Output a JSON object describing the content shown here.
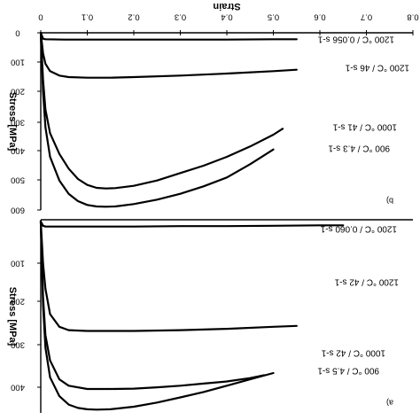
{
  "chart_data": [
    {
      "type": "line",
      "panel_label": "b)",
      "title": "",
      "xlabel": "Strain",
      "ylabel": "Stress [MPa]",
      "xlim": [
        0,
        0.8
      ],
      "ylim": [
        0,
        600
      ],
      "x_ticks": [
        "0",
        "0.1",
        "0.2",
        "0.3",
        "0.4",
        "0.5",
        "0.6",
        "0.7",
        "0.8"
      ],
      "y_ticks": [
        "0",
        "100",
        "200",
        "300",
        "400",
        "500",
        "600"
      ],
      "series": [
        {
          "name": "1200 °C / 0.056 s-1",
          "x": [
            0,
            0.005,
            0.01,
            0.05,
            0.1,
            0.2,
            0.3,
            0.4,
            0.5,
            0.55
          ],
          "y": [
            0,
            20,
            22,
            23,
            23,
            23,
            23,
            23,
            22,
            22
          ]
        },
        {
          "name": "1200 °C / 46 s-1",
          "x": [
            0,
            0.005,
            0.01,
            0.02,
            0.04,
            0.06,
            0.1,
            0.15,
            0.2,
            0.3,
            0.4,
            0.5,
            0.55
          ],
          "y": [
            0,
            70,
            105,
            130,
            145,
            150,
            152,
            152,
            150,
            145,
            138,
            130,
            125
          ]
        },
        {
          "name": "1000 °C / 41 s-1",
          "x": [
            0,
            0.005,
            0.01,
            0.02,
            0.04,
            0.06,
            0.08,
            0.1,
            0.12,
            0.14,
            0.16,
            0.2,
            0.25,
            0.3,
            0.35,
            0.4,
            0.45,
            0.5,
            0.52
          ],
          "y": [
            0,
            160,
            260,
            340,
            410,
            460,
            495,
            515,
            525,
            527,
            526,
            518,
            500,
            475,
            450,
            420,
            385,
            345,
            325
          ]
        },
        {
          "name": "900 °C / 4.3 s-1",
          "x": [
            0,
            0.005,
            0.01,
            0.02,
            0.04,
            0.06,
            0.08,
            0.1,
            0.12,
            0.14,
            0.16,
            0.2,
            0.25,
            0.3,
            0.35,
            0.4,
            0.45,
            0.5
          ],
          "y": [
            0,
            200,
            320,
            420,
            500,
            545,
            570,
            583,
            588,
            589,
            588,
            580,
            565,
            545,
            520,
            490,
            445,
            395
          ]
        }
      ]
    },
    {
      "type": "line",
      "panel_label": "a)",
      "title": "",
      "xlabel": "",
      "ylabel": "Stress [MPa]",
      "xlim": [
        0,
        0.8
      ],
      "ylim": [
        0,
        450
      ],
      "y_ticks": [
        "100",
        "200",
        "300",
        "400"
      ],
      "series": [
        {
          "name": "1200 °C / 0.060 s-1",
          "x": [
            0,
            0.005,
            0.01,
            0.05,
            0.1,
            0.2,
            0.3,
            0.4,
            0.5,
            0.6,
            0.65
          ],
          "y": [
            0,
            10,
            12,
            12,
            12,
            12,
            11,
            11,
            10,
            9,
            9
          ]
        },
        {
          "name": "1200 °C / 42 s-1",
          "x": [
            0,
            0.005,
            0.01,
            0.02,
            0.04,
            0.06,
            0.1,
            0.15,
            0.2,
            0.3,
            0.4,
            0.5,
            0.55
          ],
          "y": [
            0,
            100,
            160,
            220,
            250,
            258,
            260,
            260,
            260,
            258,
            255,
            250,
            248
          ]
        },
        {
          "name": "1000 °C / 42 s-1",
          "x": [
            0,
            0.005,
            0.01,
            0.02,
            0.04,
            0.06,
            0.1,
            0.15,
            0.2,
            0.25,
            0.3,
            0.35,
            0.4,
            0.45,
            0.48
          ],
          "y": [
            0,
            180,
            270,
            330,
            375,
            390,
            398,
            398,
            397,
            394,
            390,
            385,
            380,
            372,
            365
          ]
        },
        {
          "name": "900 °C / 4.5 s-1",
          "x": [
            0,
            0.005,
            0.01,
            0.02,
            0.04,
            0.06,
            0.08,
            0.1,
            0.12,
            0.15,
            0.2,
            0.25,
            0.3,
            0.35,
            0.4,
            0.45,
            0.5
          ],
          "y": [
            0,
            200,
            300,
            370,
            415,
            435,
            443,
            446,
            447,
            446,
            440,
            430,
            418,
            405,
            390,
            375,
            360
          ]
        }
      ]
    }
  ]
}
